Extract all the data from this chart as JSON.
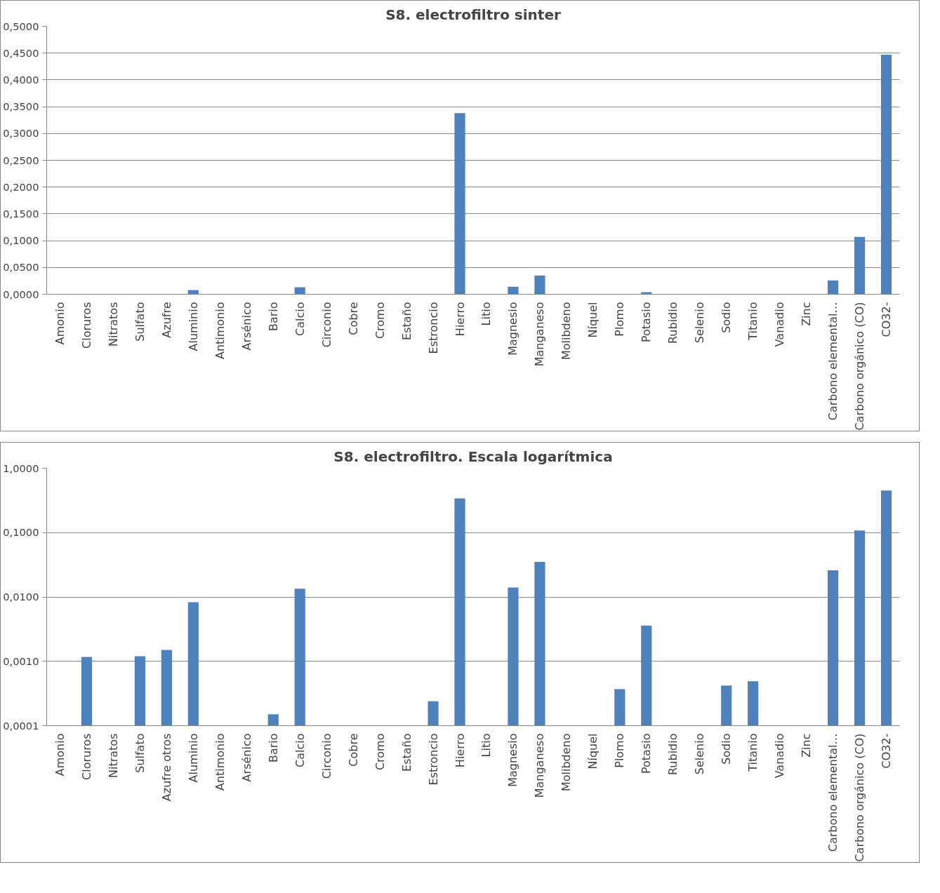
{
  "chart_data": [
    {
      "type": "bar",
      "title": "S8. electrofiltro sinter",
      "categories": [
        "Amonio",
        "Cloruros",
        "Nitratos",
        "Sulfato",
        "Azufre",
        "Aluminio",
        "Antimonio",
        "Arsénico",
        "Bario",
        "Calcio",
        "Circonio",
        "Cobre",
        "Cromo",
        "Estaño",
        "Estroncio",
        "Hierro",
        "Litio",
        "Magnesio",
        "Manganeso",
        "Molibdeno",
        "Níquel",
        "Plomo",
        "Potasio",
        "Rubidio",
        "Selenio",
        "Sodio",
        "Titanio",
        "Vanadio",
        "Zinc",
        "Carbono elemental…",
        "Carbono orgánico (CO)",
        "CO32-"
      ],
      "series": [
        {
          "color": "#4f81bd",
          "values": [
            0,
            0,
            0,
            0,
            0,
            0.008,
            0,
            0,
            0,
            0.013,
            0,
            0,
            0,
            0,
            0,
            0.338,
            0,
            0.014,
            0.035,
            0,
            0,
            0,
            0.004,
            0,
            0,
            0,
            0,
            0,
            0,
            0.026,
            0.107,
            0.447
          ]
        }
      ],
      "ylim": [
        0,
        0.5
      ],
      "yticks": [
        {
          "value": 0,
          "label": "0,0000"
        },
        {
          "value": 0.05,
          "label": "0,0500"
        },
        {
          "value": 0.1,
          "label": "0,1000"
        },
        {
          "value": 0.15,
          "label": "0,1500"
        },
        {
          "value": 0.2,
          "label": "0,2000"
        },
        {
          "value": 0.25,
          "label": "0,2500"
        },
        {
          "value": 0.3,
          "label": "0,3000"
        },
        {
          "value": 0.35,
          "label": "0,3500"
        },
        {
          "value": 0.4,
          "label": "0,4000"
        },
        {
          "value": 0.45,
          "label": "0,4500"
        },
        {
          "value": 0.5,
          "label": "0,5000"
        }
      ],
      "grid": "y"
    },
    {
      "type": "bar",
      "title": "S8. electrofiltro. Escala logarítmica",
      "categories": [
        "Amonio",
        "Cloruros",
        "Nitratos",
        "Sulfato",
        "Azufre otros",
        "Aluminio",
        "Antimonio",
        "Arsénico",
        "Bario",
        "Calcio",
        "Circonio",
        "Cobre",
        "Cromo",
        "Estaño",
        "Estroncio",
        "Hierro",
        "Litio",
        "Magnesio",
        "Manganeso",
        "Molibdeno",
        "Níquel",
        "Plomo",
        "Potasio",
        "Rubidio",
        "Selenio",
        "Sodio",
        "Titanio",
        "Vanadio",
        "Zinc",
        "Carbono elemental…",
        "Carbono orgánico (CO)",
        "CO32-"
      ],
      "series": [
        {
          "color": "#4f81bd",
          "values": [
            null,
            0.00117,
            null,
            0.0012,
            0.0015,
            0.0083,
            null,
            null,
            0.00015,
            0.0134,
            null,
            null,
            null,
            null,
            0.00024,
            0.34,
            null,
            0.014,
            0.035,
            null,
            null,
            0.00037,
            0.0036,
            null,
            null,
            0.00042,
            0.00049,
            null,
            null,
            0.026,
            0.108,
            0.45
          ]
        }
      ],
      "log": true,
      "ylim": [
        0.0001,
        1
      ],
      "yticks": [
        {
          "value": 0.0001,
          "label": "0,0001"
        },
        {
          "value": 0.001,
          "label": "0,0010"
        },
        {
          "value": 0.01,
          "label": "0,0100"
        },
        {
          "value": 0.1,
          "label": "0,1000"
        },
        {
          "value": 1,
          "label": "1,0000"
        }
      ],
      "grid": "y"
    }
  ]
}
